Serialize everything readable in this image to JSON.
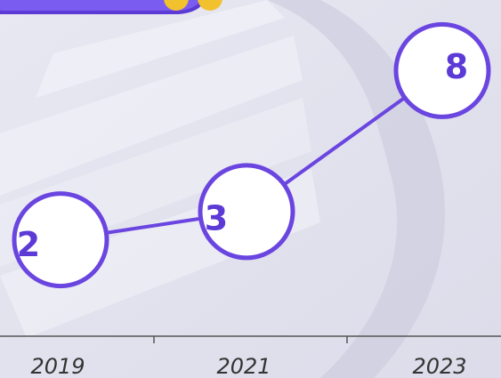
{
  "chart_data": {
    "type": "line",
    "categories": [
      "2019",
      "2021",
      "2023"
    ],
    "values": [
      2,
      3,
      8
    ],
    "color": "#6a45e0"
  }
}
